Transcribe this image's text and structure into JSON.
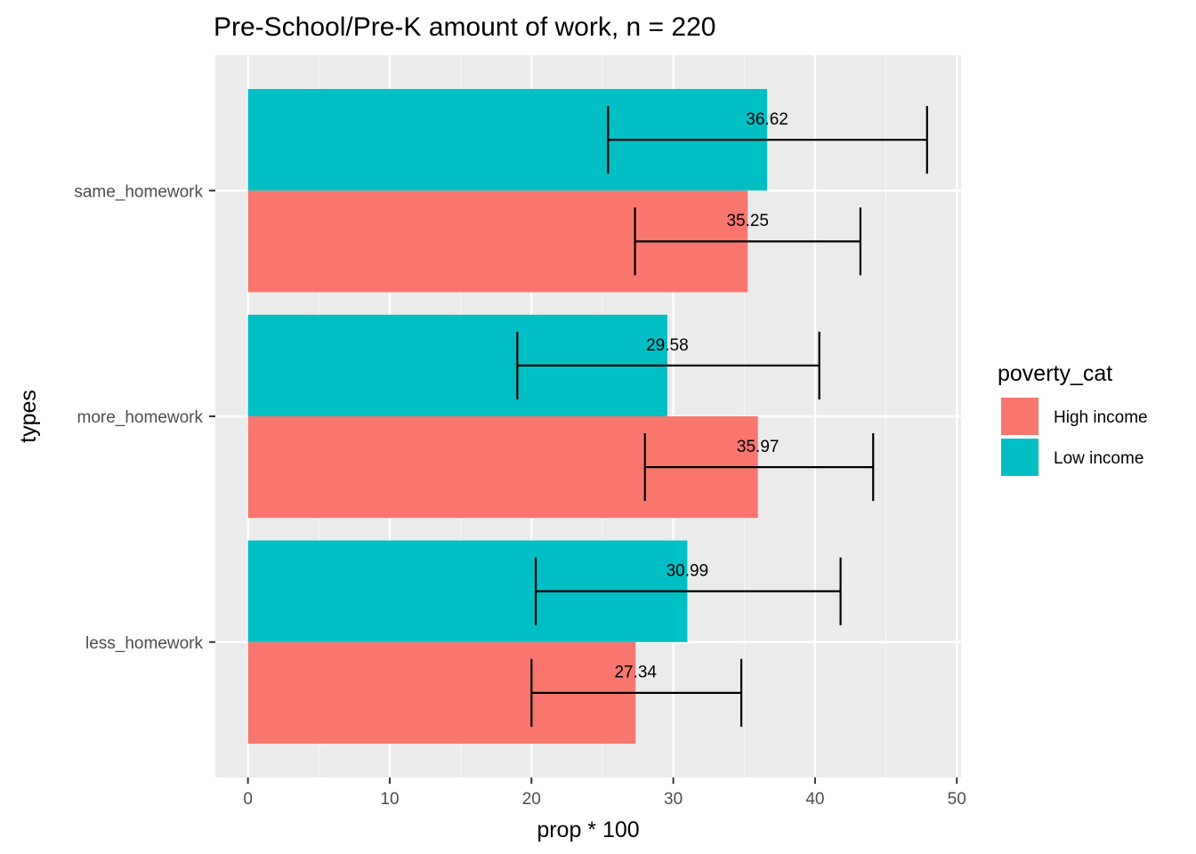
{
  "chart_data": {
    "type": "bar",
    "orientation": "horizontal",
    "title": "Pre-School/Pre-K amount of work, n = 220",
    "xlabel": "prop * 100",
    "ylabel": "types",
    "xlim": [
      -2.3,
      50.3
    ],
    "x_ticks": [
      0,
      10,
      20,
      30,
      40,
      50
    ],
    "x_minor_ticks": [
      5,
      15,
      25,
      35,
      45
    ],
    "categories": [
      "less_homework",
      "more_homework",
      "same_homework"
    ],
    "grid": true,
    "legend": {
      "title": "poverty_cat",
      "position": "right",
      "entries": [
        {
          "name": "High income",
          "color": "#F8766D"
        },
        {
          "name": "Low income",
          "color": "#00BFC4"
        }
      ]
    },
    "series": [
      {
        "name": "High income",
        "color": "#F8766D",
        "values": [
          27.34,
          35.97,
          35.25
        ],
        "labels": [
          "27.34",
          "35.97",
          "35.25"
        ],
        "ci_low": [
          20.0,
          28.0,
          27.3
        ],
        "ci_high": [
          34.8,
          44.1,
          43.2
        ]
      },
      {
        "name": "Low income",
        "color": "#00BFC4",
        "values": [
          30.99,
          29.58,
          36.62
        ],
        "labels": [
          "30.99",
          "29.58",
          "36.62"
        ],
        "ci_low": [
          20.3,
          19.0,
          25.4
        ],
        "ci_high": [
          41.8,
          40.3,
          47.9
        ]
      }
    ]
  },
  "colors": {
    "panel_background": "#EBEBEB",
    "grid_major": "#FFFFFF",
    "grid_minor": "#F5F5F5",
    "error_bar": "#000000"
  }
}
